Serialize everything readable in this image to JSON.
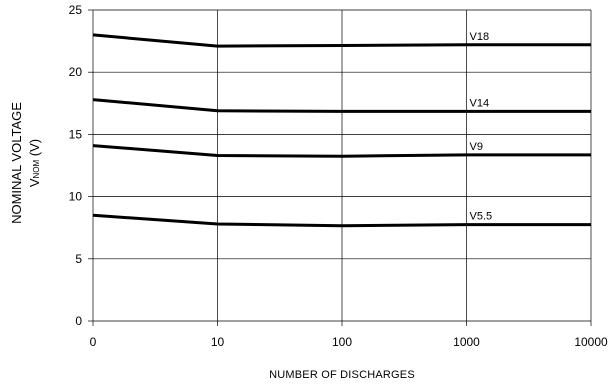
{
  "chart_data": {
    "type": "line",
    "title": "",
    "xlabel": "NUMBER OF DISCHARGES",
    "ylabel": {
      "line1": "NOMINAL VOLTAGE",
      "symbol": "V",
      "subscript": "NOM",
      "unit": "(V)"
    },
    "x_ticks": [
      "0",
      "10",
      "100",
      "1000",
      "10000"
    ],
    "y_ticks": [
      0,
      5,
      10,
      15,
      20,
      25
    ],
    "ylim": [
      0,
      25
    ],
    "grid": true,
    "legend": "none",
    "series": [
      {
        "name": "V18",
        "points": [
          [
            "0",
            23.0
          ],
          [
            "10",
            22.1
          ],
          [
            "100",
            22.15
          ],
          [
            "1000",
            22.2
          ],
          [
            "10000",
            22.2
          ]
        ]
      },
      {
        "name": "V14",
        "points": [
          [
            "0",
            17.8
          ],
          [
            "10",
            16.9
          ],
          [
            "100",
            16.85
          ],
          [
            "1000",
            16.85
          ],
          [
            "10000",
            16.85
          ]
        ]
      },
      {
        "name": "V9",
        "points": [
          [
            "0",
            14.1
          ],
          [
            "10",
            13.3
          ],
          [
            "100",
            13.25
          ],
          [
            "1000",
            13.35
          ],
          [
            "10000",
            13.35
          ]
        ]
      },
      {
        "name": "V5.5",
        "points": [
          [
            "0",
            8.5
          ],
          [
            "10",
            7.8
          ],
          [
            "100",
            7.65
          ],
          [
            "1000",
            7.75
          ],
          [
            "10000",
            7.75
          ]
        ]
      }
    ]
  }
}
